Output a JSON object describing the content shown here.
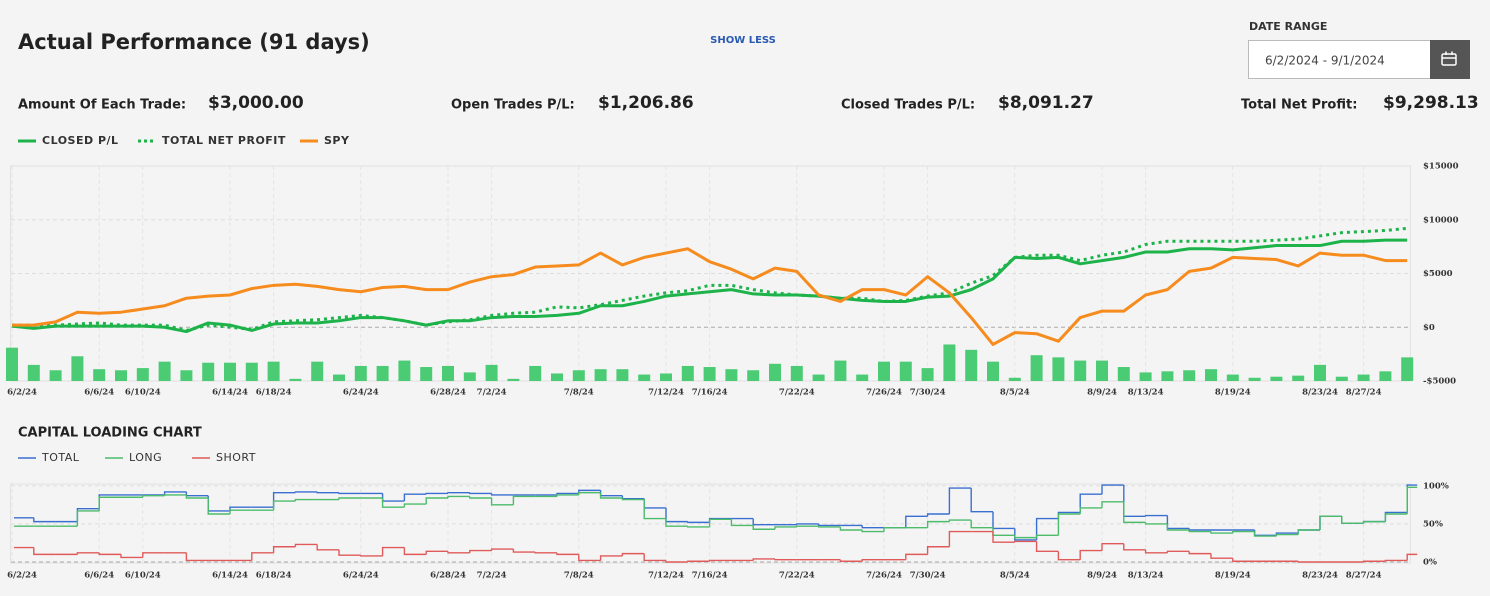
{
  "header": {
    "title": "Actual Performance (91 days)",
    "toggle": "SHOW LESS",
    "date_range_label": "DATE RANGE",
    "date_range": "6/2/2024 - 9/1/2024"
  },
  "stats": [
    {
      "label": "Amount Of Each Trade:",
      "value": "$3,000.00"
    },
    {
      "label": "Open Trades P/L:",
      "value": "$1,206.86"
    },
    {
      "label": "Closed Trades P/L:",
      "value": "$8,091.27"
    },
    {
      "label": "Total Net Profit:",
      "value": "$9,298.13"
    }
  ],
  "chart_data": [
    {
      "type": "line",
      "grid": true,
      "categories": [
        "6/2/24",
        null,
        null,
        null,
        "6/6/24",
        null,
        "6/10/24",
        null,
        null,
        null,
        "6/14/24",
        null,
        "6/18/24",
        null,
        null,
        null,
        "6/24/24",
        null,
        null,
        null,
        "6/28/24",
        null,
        "7/2/24",
        null,
        null,
        null,
        "7/8/24",
        null,
        null,
        null,
        "7/12/24",
        null,
        "7/16/24",
        null,
        null,
        null,
        "7/22/24",
        null,
        null,
        null,
        "7/26/24",
        null,
        "7/30/24",
        null,
        null,
        null,
        "8/5/24",
        null,
        null,
        null,
        "8/9/24",
        null,
        "8/13/24",
        null,
        null,
        null,
        "8/19/24",
        null,
        null,
        null,
        "8/23/24",
        null,
        "8/27/24",
        null,
        null
      ],
      "ylim": [
        -5000,
        15000
      ],
      "yticks": [
        {
          "value": 15000,
          "label": "$15000"
        },
        {
          "value": 10000,
          "label": "$10000"
        },
        {
          "value": 5000,
          "label": "$5000"
        },
        {
          "value": 0,
          "label": "$0"
        },
        {
          "value": -5000,
          "label": "-$5000"
        }
      ],
      "series": [
        {
          "name": "CLOSED P/L",
          "color": "#1db34a",
          "style": "solid",
          "values": [
            100,
            -100,
            100,
            100,
            100,
            100,
            100,
            0,
            -400,
            400,
            200,
            -300,
            300,
            400,
            400,
            600,
            900,
            900,
            600,
            200,
            600,
            600,
            900,
            1000,
            1000,
            1100,
            1300,
            2000,
            2000,
            2400,
            2900,
            3100,
            3300,
            3500,
            3100,
            3000,
            3000,
            2900,
            2700,
            2500,
            2400,
            2400,
            2800,
            2900,
            3500,
            4500,
            6500,
            6400,
            6500,
            5900,
            6200,
            6500,
            7000,
            7000,
            7300,
            7300,
            7200,
            7400,
            7600,
            7600,
            7600,
            8000,
            8000,
            8100,
            8100
          ]
        },
        {
          "name": "TOTAL NET PROFIT",
          "color": "#1db34a",
          "style": "dotted",
          "values": [
            200,
            200,
            200,
            300,
            400,
            200,
            200,
            200,
            -300,
            200,
            0,
            -200,
            500,
            600,
            700,
            900,
            1100,
            900,
            600,
            200,
            500,
            700,
            1100,
            1300,
            1400,
            1900,
            1800,
            2100,
            2500,
            2900,
            3200,
            3400,
            3900,
            3900,
            3500,
            3200,
            3000,
            2900,
            2700,
            2700,
            2400,
            2500,
            2900,
            3200,
            4100,
            4800,
            6500,
            6700,
            6700,
            6200,
            6700,
            7000,
            7700,
            8000,
            8000,
            8000,
            8000,
            8000,
            8100,
            8200,
            8500,
            8800,
            8900,
            9000,
            9200
          ]
        },
        {
          "name": "SPY",
          "color": "#f68b1e",
          "style": "solid",
          "values": [
            200,
            200,
            500,
            1400,
            1300,
            1400,
            1700,
            2000,
            2700,
            2900,
            3000,
            3600,
            3900,
            4000,
            3800,
            3500,
            3300,
            3700,
            3800,
            3500,
            3500,
            4200,
            4700,
            4900,
            5600,
            5700,
            5800,
            6900,
            5800,
            6500,
            6900,
            7300,
            6100,
            5400,
            4500,
            5500,
            5200,
            3000,
            2400,
            3500,
            3500,
            3000,
            4700,
            3200,
            900,
            -1600,
            -500,
            -600,
            -1300,
            900,
            1500,
            1500,
            3000,
            3500,
            5200,
            5500,
            6500,
            6400,
            6300,
            5700,
            6900,
            6700,
            6700,
            6200,
            6200
          ]
        }
      ],
      "bars": {
        "color": "#4ccb75",
        "values": [
          -1900,
          -3500,
          -4000,
          -2700,
          -3900,
          -4000,
          -3800,
          -3200,
          -4000,
          -3300,
          -3300,
          -3300,
          -3200,
          -4800,
          -3200,
          -4400,
          -3600,
          -3600,
          -3100,
          -3700,
          -3600,
          -4200,
          -3500,
          -4800,
          -3600,
          -4300,
          -4000,
          -3900,
          -3900,
          -4400,
          -4300,
          -3600,
          -3700,
          -3900,
          -4000,
          -3400,
          -3600,
          -4400,
          -3100,
          -4400,
          -3200,
          -3200,
          -3800,
          -1600,
          -2100,
          -3200,
          -4700,
          -2600,
          -2800,
          -3100,
          -3100,
          -3700,
          -4200,
          -4100,
          -4000,
          -3900,
          -4400,
          -4700,
          -4600,
          -4500,
          -3500,
          -4600,
          -4400,
          -4100,
          -2800
        ]
      }
    },
    {
      "type": "step",
      "title": "CAPITAL LOADING CHART",
      "grid": true,
      "categories": [
        "6/2/24",
        null,
        null,
        null,
        "6/6/24",
        null,
        "6/10/24",
        null,
        null,
        null,
        "6/14/24",
        null,
        "6/18/24",
        null,
        null,
        null,
        "6/24/24",
        null,
        null,
        null,
        "6/28/24",
        null,
        "7/2/24",
        null,
        null,
        null,
        "7/8/24",
        null,
        null,
        null,
        "7/12/24",
        null,
        "7/16/24",
        null,
        null,
        null,
        "7/22/24",
        null,
        null,
        null,
        "7/26/24",
        null,
        "7/30/24",
        null,
        null,
        null,
        "8/5/24",
        null,
        null,
        null,
        "8/9/24",
        null,
        "8/13/24",
        null,
        null,
        null,
        "8/19/24",
        null,
        null,
        null,
        "8/23/24",
        null,
        "8/27/24",
        null,
        null
      ],
      "ylim": [
        0,
        105
      ],
      "yticks": [
        {
          "value": 100,
          "label": "100%"
        },
        {
          "value": 50,
          "label": "50%"
        },
        {
          "value": 0,
          "label": "0%"
        }
      ],
      "series": [
        {
          "name": "TOTAL",
          "color": "#3a6fd1",
          "values": [
            58,
            53,
            53,
            70,
            88,
            88,
            88,
            92,
            87,
            67,
            72,
            72,
            91,
            92,
            91,
            90,
            90,
            80,
            89,
            90,
            91,
            90,
            88,
            88,
            88,
            90,
            94,
            87,
            83,
            71,
            53,
            52,
            57,
            57,
            49,
            49,
            50,
            48,
            48,
            45,
            45,
            60,
            63,
            97,
            66,
            44,
            29,
            57,
            65,
            89,
            101,
            60,
            61,
            44,
            42,
            42,
            42,
            35,
            38,
            42,
            60,
            51,
            53,
            65,
            101
          ]
        },
        {
          "name": "LONG",
          "color": "#4cbb6a",
          "values": [
            47,
            47,
            47,
            67,
            85,
            85,
            87,
            88,
            84,
            63,
            68,
            68,
            80,
            82,
            82,
            84,
            84,
            72,
            76,
            84,
            86,
            84,
            75,
            86,
            86,
            88,
            91,
            84,
            82,
            57,
            47,
            46,
            56,
            48,
            43,
            46,
            47,
            46,
            42,
            40,
            45,
            45,
            53,
            55,
            45,
            35,
            32,
            35,
            63,
            71,
            79,
            52,
            50,
            42,
            40,
            38,
            40,
            34,
            36,
            42,
            60,
            51,
            53,
            63,
            98
          ]
        },
        {
          "name": "SHORT",
          "color": "#e05a5a",
          "values": [
            19,
            10,
            10,
            12,
            10,
            6,
            12,
            12,
            2,
            2,
            2,
            12,
            20,
            23,
            16,
            9,
            8,
            19,
            10,
            14,
            12,
            15,
            17,
            13,
            12,
            10,
            2,
            8,
            11,
            2,
            0,
            1,
            2,
            2,
            4,
            3,
            3,
            3,
            1,
            3,
            3,
            10,
            20,
            40,
            40,
            26,
            27,
            14,
            3,
            15,
            24,
            16,
            12,
            14,
            11,
            5,
            1,
            1,
            1,
            0,
            0,
            0,
            1,
            2,
            10
          ]
        }
      ]
    }
  ]
}
